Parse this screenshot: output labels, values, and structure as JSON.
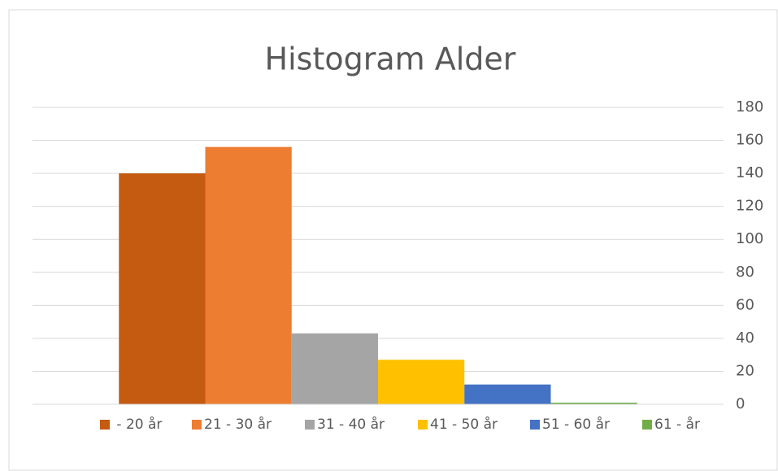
{
  "chart_data": {
    "type": "bar",
    "title": "Histogram Alder",
    "series": [
      {
        "name": " - 20 år",
        "color": "#c55a11",
        "values": [
          140
        ]
      },
      {
        "name": "21 - 30 år",
        "color": "#ed7d31",
        "values": [
          156
        ]
      },
      {
        "name": "31 - 40 år",
        "color": "#a5a5a5",
        "values": [
          43
        ]
      },
      {
        "name": "41 - 50 år",
        "color": "#ffc000",
        "values": [
          27
        ]
      },
      {
        "name": "51 - 60 år",
        "color": "#4472c4",
        "values": [
          12
        ]
      },
      {
        "name": "61 - år",
        "color": "#70ad47",
        "values": [
          1
        ]
      }
    ],
    "ylim": [
      0,
      180
    ],
    "yticks": [
      0,
      20,
      40,
      60,
      80,
      100,
      120,
      140,
      160,
      180
    ],
    "grid": true,
    "y_axis_side": "right",
    "legend": "bottom"
  }
}
